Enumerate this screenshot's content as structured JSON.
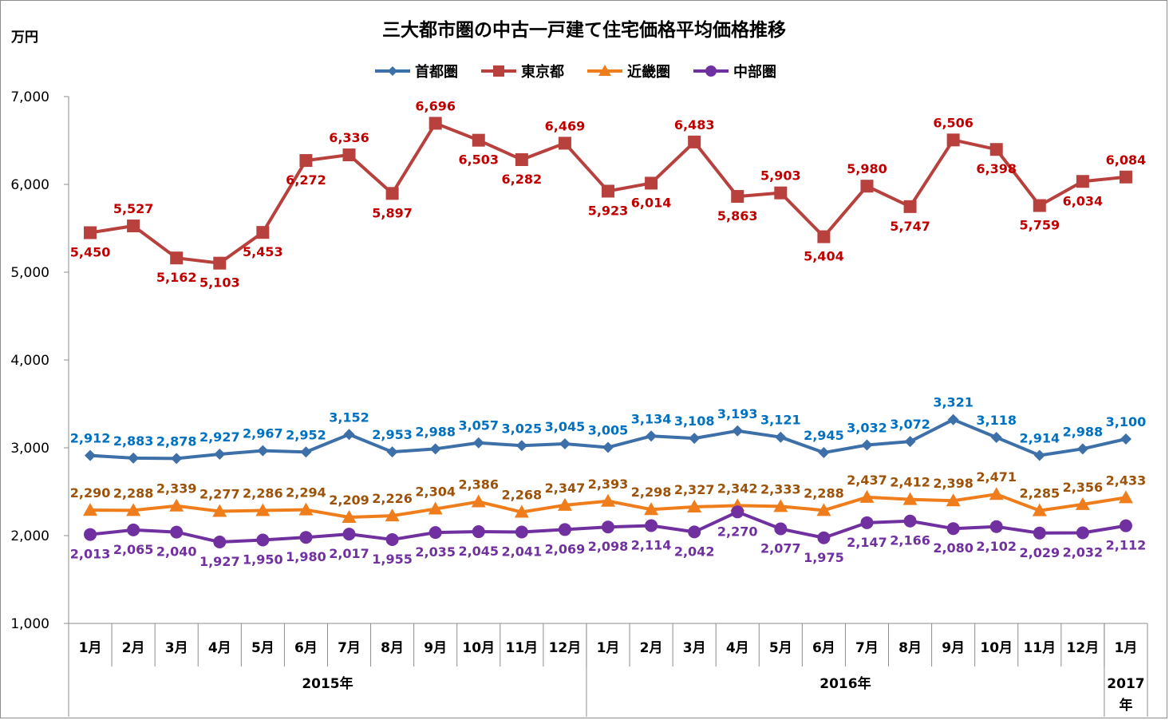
{
  "chart_data": {
    "type": "line",
    "title": "三大都市圏の中古一戸建て住宅価格平均価格推移",
    "ylabel": "万円",
    "ylim": [
      1000,
      7000
    ],
    "yticks": [
      "1,000",
      "2,000",
      "3,000",
      "4,000",
      "5,000",
      "6,000",
      "7,000"
    ],
    "grid": false,
    "legend_position": "top-center",
    "categories": [
      "1月",
      "2月",
      "3月",
      "4月",
      "5月",
      "6月",
      "7月",
      "8月",
      "9月",
      "10月",
      "11月",
      "12月",
      "1月",
      "2月",
      "3月",
      "4月",
      "5月",
      "6月",
      "7月",
      "8月",
      "9月",
      "10月",
      "11月",
      "12月",
      "1月"
    ],
    "year_groups": [
      {
        "label": "2015年",
        "start": 0,
        "end": 11
      },
      {
        "label": "2016年",
        "start": 12,
        "end": 23
      },
      {
        "label_lines": [
          "2017",
          "年"
        ],
        "start": 24,
        "end": 24
      }
    ],
    "series": [
      {
        "name": "首都圏",
        "color": "#3d6fa8",
        "label_color": "#0070c0",
        "marker": "diamond",
        "label_pos": "above",
        "values": [
          2912,
          2883,
          2878,
          2927,
          2967,
          2952,
          3152,
          2953,
          2988,
          3057,
          3025,
          3045,
          3005,
          3134,
          3108,
          3193,
          3121,
          2945,
          3032,
          3072,
          3321,
          3118,
          2914,
          2988,
          3100
        ],
        "labels": [
          "2,912",
          "2,883",
          "2,878",
          "2,927",
          "2,967",
          "2,952",
          "3,152",
          "2,953",
          "2,988",
          "3,057",
          "3,025",
          "3,045",
          "3,005",
          "3,134",
          "3,108",
          "3,193",
          "3,121",
          "2,945",
          "3,032",
          "3,072",
          "3,321",
          "3,118",
          "2,914",
          "2,988",
          "3,100"
        ]
      },
      {
        "name": "東京都",
        "color": "#b8403d",
        "label_color": "#c00000",
        "marker": "square",
        "label_pos": "mixed",
        "values": [
          5450,
          5527,
          5162,
          5103,
          5453,
          6272,
          6336,
          5897,
          6696,
          6503,
          6282,
          6469,
          5923,
          6014,
          6483,
          5863,
          5903,
          5404,
          5980,
          5747,
          6506,
          6398,
          5759,
          6034,
          6084
        ],
        "labels": [
          "5,450",
          "5,527",
          "5,162",
          "5,103",
          "5,453",
          "6,272",
          "6,336",
          "5,897",
          "6,696",
          "6,503",
          "6,282",
          "6,469",
          "5,923",
          "6,014",
          "6,483",
          "5,863",
          "5,903",
          "5,404",
          "5,980",
          "5,747",
          "6,506",
          "6,398",
          "5,759",
          "6,034",
          "6,084"
        ]
      },
      {
        "name": "近畿圏",
        "color": "#f07d1c",
        "label_color": "#9c5208",
        "marker": "triangle",
        "label_pos": "above",
        "values": [
          2290,
          2288,
          2339,
          2277,
          2286,
          2294,
          2209,
          2226,
          2304,
          2386,
          2268,
          2347,
          2393,
          2298,
          2327,
          2342,
          2333,
          2288,
          2437,
          2412,
          2398,
          2471,
          2285,
          2356,
          2433
        ],
        "labels": [
          "2,290",
          "2,288",
          "2,339",
          "2,277",
          "2,286",
          "2,294",
          "2,209",
          "2,226",
          "2,304",
          "2,386",
          "2,268",
          "2,347",
          "2,393",
          "2,298",
          "2,327",
          "2,342",
          "2,333",
          "2,288",
          "2,437",
          "2,412",
          "2,398",
          "2,471",
          "2,285",
          "2,356",
          "2,433"
        ]
      },
      {
        "name": "中部圏",
        "color": "#7030a0",
        "label_color": "#7030a0",
        "marker": "circle",
        "label_pos": "below",
        "values": [
          2013,
          2065,
          2040,
          1927,
          1950,
          1980,
          2017,
          1955,
          2035,
          2045,
          2041,
          2069,
          2098,
          2114,
          2042,
          2270,
          2077,
          1975,
          2147,
          2166,
          2080,
          2102,
          2029,
          2032,
          2112
        ],
        "labels": [
          "2,013",
          "2,065",
          "2,040",
          "1,927",
          "1,950",
          "1,980",
          "2,017",
          "1,955",
          "2,035",
          "2,045",
          "2,041",
          "2,069",
          "2,098",
          "2,114",
          "2,042",
          "2,270",
          "2,077",
          "1,975",
          "2,147",
          "2,166",
          "2,080",
          "2,102",
          "2,029",
          "2,032",
          "2,112"
        ]
      }
    ]
  }
}
